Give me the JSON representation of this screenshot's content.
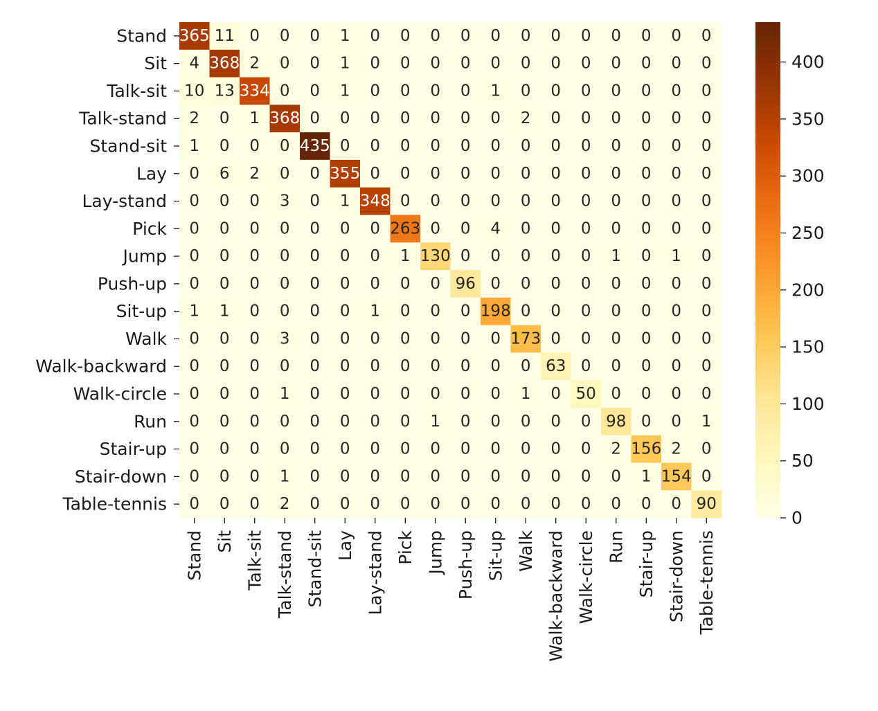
{
  "chart_data": {
    "type": "heatmap",
    "title": "",
    "xlabel": "",
    "ylabel": "",
    "row_labels": [
      "Stand",
      "Sit",
      "Talk-sit",
      "Talk-stand",
      "Stand-sit",
      "Lay",
      "Lay-stand",
      "Pick",
      "Jump",
      "Push-up",
      "Sit-up",
      "Walk",
      "Walk-backward",
      "Walk-circle",
      "Run",
      "Stair-up",
      "Stair-down",
      "Table-tennis"
    ],
    "col_labels": [
      "Stand",
      "Sit",
      "Talk-sit",
      "Talk-stand",
      "Stand-sit",
      "Lay",
      "Lay-stand",
      "Pick",
      "Jump",
      "Push-up",
      "Sit-up",
      "Walk",
      "Walk-backward",
      "Walk-circle",
      "Run",
      "Stair-up",
      "Stair-down",
      "Table-tennis"
    ],
    "values": [
      [
        365,
        11,
        0,
        0,
        0,
        1,
        0,
        0,
        0,
        0,
        0,
        0,
        0,
        0,
        0,
        0,
        0,
        0
      ],
      [
        4,
        368,
        2,
        0,
        0,
        1,
        0,
        0,
        0,
        0,
        0,
        0,
        0,
        0,
        0,
        0,
        0,
        0
      ],
      [
        10,
        13,
        334,
        0,
        0,
        1,
        0,
        0,
        0,
        0,
        1,
        0,
        0,
        0,
        0,
        0,
        0,
        0
      ],
      [
        2,
        0,
        1,
        368,
        0,
        0,
        0,
        0,
        0,
        0,
        0,
        2,
        0,
        0,
        0,
        0,
        0,
        0
      ],
      [
        1,
        0,
        0,
        0,
        435,
        0,
        0,
        0,
        0,
        0,
        0,
        0,
        0,
        0,
        0,
        0,
        0,
        0
      ],
      [
        0,
        6,
        2,
        0,
        0,
        355,
        0,
        0,
        0,
        0,
        0,
        0,
        0,
        0,
        0,
        0,
        0,
        0
      ],
      [
        0,
        0,
        0,
        3,
        0,
        1,
        348,
        0,
        0,
        0,
        0,
        0,
        0,
        0,
        0,
        0,
        0,
        0
      ],
      [
        0,
        0,
        0,
        0,
        0,
        0,
        0,
        263,
        0,
        0,
        4,
        0,
        0,
        0,
        0,
        0,
        0,
        0
      ],
      [
        0,
        0,
        0,
        0,
        0,
        0,
        0,
        1,
        130,
        0,
        0,
        0,
        0,
        0,
        1,
        0,
        1,
        0
      ],
      [
        0,
        0,
        0,
        0,
        0,
        0,
        0,
        0,
        0,
        96,
        0,
        0,
        0,
        0,
        0,
        0,
        0,
        0
      ],
      [
        1,
        1,
        0,
        0,
        0,
        0,
        1,
        0,
        0,
        0,
        198,
        0,
        0,
        0,
        0,
        0,
        0,
        0
      ],
      [
        0,
        0,
        0,
        3,
        0,
        0,
        0,
        0,
        0,
        0,
        0,
        173,
        0,
        0,
        0,
        0,
        0,
        0
      ],
      [
        0,
        0,
        0,
        0,
        0,
        0,
        0,
        0,
        0,
        0,
        0,
        0,
        63,
        0,
        0,
        0,
        0,
        0
      ],
      [
        0,
        0,
        0,
        1,
        0,
        0,
        0,
        0,
        0,
        0,
        0,
        1,
        0,
        50,
        0,
        0,
        0,
        0
      ],
      [
        0,
        0,
        0,
        0,
        0,
        0,
        0,
        0,
        1,
        0,
        0,
        0,
        0,
        0,
        98,
        0,
        0,
        1
      ],
      [
        0,
        0,
        0,
        0,
        0,
        0,
        0,
        0,
        0,
        0,
        0,
        0,
        0,
        0,
        2,
        156,
        2,
        0
      ],
      [
        0,
        0,
        0,
        1,
        0,
        0,
        0,
        0,
        0,
        0,
        0,
        0,
        0,
        0,
        0,
        1,
        154,
        0
      ],
      [
        0,
        0,
        0,
        2,
        0,
        0,
        0,
        0,
        0,
        0,
        0,
        0,
        0,
        0,
        0,
        0,
        0,
        90
      ]
    ],
    "colormap": "YlOrBr",
    "colorbar": {
      "range": [
        0,
        435
      ],
      "ticks": [
        0,
        50,
        100,
        150,
        200,
        250,
        300,
        350,
        400
      ],
      "tick_labels": [
        "0",
        "50",
        "100",
        "150",
        "200",
        "250",
        "300",
        "350",
        "400"
      ]
    },
    "colors": {
      "low": "#ffffe5",
      "high": "#662506"
    }
  }
}
